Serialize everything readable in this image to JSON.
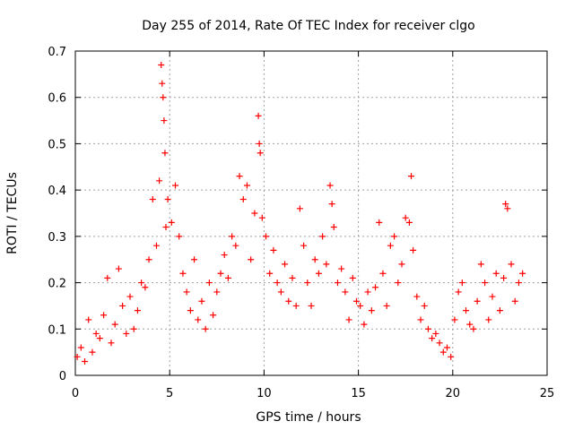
{
  "chart_data": {
    "type": "scatter",
    "title": "Day 255 of 2014, Rate Of TEC Index for receiver clgo",
    "xlabel": "GPS time / hours",
    "ylabel": "ROTI / TECUs",
    "xlim": [
      0,
      25
    ],
    "ylim": [
      0,
      0.7
    ],
    "xticks": [
      0,
      5,
      10,
      15,
      20,
      25
    ],
    "xtick_labels": [
      "0",
      "5",
      "10",
      "15",
      "20",
      "25"
    ],
    "yticks": [
      0,
      0.1,
      0.2,
      0.3,
      0.4,
      0.5,
      0.6,
      0.7
    ],
    "ytick_labels": [
      "0",
      "0.1",
      "0.2",
      "0.3",
      "0.4",
      "0.5",
      "0.6",
      "0.7"
    ],
    "grid": true,
    "marker": "+",
    "marker_color": "#ff0000",
    "series": [
      {
        "name": "ROTI",
        "x": [
          0.1,
          0.3,
          0.5,
          0.7,
          0.9,
          1.1,
          1.3,
          1.5,
          1.7,
          1.9,
          2.1,
          2.3,
          2.5,
          2.7,
          2.9,
          3.1,
          3.3,
          3.5,
          3.7,
          3.9,
          4.1,
          4.3,
          4.45,
          4.55,
          4.6,
          4.65,
          4.7,
          4.75,
          4.8,
          4.9,
          5.1,
          5.3,
          5.5,
          5.7,
          5.9,
          6.1,
          6.3,
          6.5,
          6.7,
          6.9,
          7.1,
          7.3,
          7.5,
          7.7,
          7.9,
          8.1,
          8.3,
          8.5,
          8.7,
          8.9,
          9.1,
          9.3,
          9.5,
          9.7,
          9.75,
          9.8,
          9.9,
          10.1,
          10.3,
          10.5,
          10.7,
          10.9,
          11.1,
          11.3,
          11.5,
          11.7,
          11.9,
          12.1,
          12.3,
          12.5,
          12.7,
          12.9,
          13.1,
          13.3,
          13.5,
          13.6,
          13.7,
          13.9,
          14.1,
          14.3,
          14.5,
          14.7,
          14.9,
          15.1,
          15.3,
          15.5,
          15.7,
          15.9,
          16.1,
          16.3,
          16.5,
          16.7,
          16.9,
          17.1,
          17.3,
          17.5,
          17.7,
          17.8,
          17.9,
          18.1,
          18.3,
          18.5,
          18.7,
          18.9,
          19.1,
          19.3,
          19.5,
          19.7,
          19.9,
          20.1,
          20.3,
          20.5,
          20.7,
          20.9,
          21.1,
          21.3,
          21.5,
          21.7,
          21.9,
          22.1,
          22.3,
          22.5,
          22.7,
          22.8,
          22.9,
          23.1,
          23.3,
          23.5,
          23.7
        ],
        "y": [
          0.04,
          0.06,
          0.03,
          0.12,
          0.05,
          0.09,
          0.08,
          0.13,
          0.21,
          0.07,
          0.11,
          0.23,
          0.15,
          0.09,
          0.17,
          0.1,
          0.14,
          0.2,
          0.19,
          0.25,
          0.38,
          0.28,
          0.42,
          0.67,
          0.63,
          0.6,
          0.55,
          0.48,
          0.32,
          0.38,
          0.33,
          0.41,
          0.3,
          0.22,
          0.18,
          0.14,
          0.25,
          0.12,
          0.16,
          0.1,
          0.2,
          0.13,
          0.18,
          0.22,
          0.26,
          0.21,
          0.3,
          0.28,
          0.43,
          0.38,
          0.41,
          0.25,
          0.35,
          0.56,
          0.5,
          0.48,
          0.34,
          0.3,
          0.22,
          0.27,
          0.2,
          0.18,
          0.24,
          0.16,
          0.21,
          0.15,
          0.36,
          0.28,
          0.2,
          0.15,
          0.25,
          0.22,
          0.3,
          0.24,
          0.41,
          0.37,
          0.32,
          0.2,
          0.23,
          0.18,
          0.12,
          0.21,
          0.16,
          0.15,
          0.11,
          0.18,
          0.14,
          0.19,
          0.33,
          0.22,
          0.15,
          0.28,
          0.3,
          0.2,
          0.24,
          0.34,
          0.33,
          0.43,
          0.27,
          0.17,
          0.12,
          0.15,
          0.1,
          0.08,
          0.09,
          0.07,
          0.05,
          0.06,
          0.04,
          0.12,
          0.18,
          0.2,
          0.14,
          0.11,
          0.1,
          0.16,
          0.24,
          0.2,
          0.12,
          0.17,
          0.22,
          0.14,
          0.21,
          0.37,
          0.36,
          0.24,
          0.16,
          0.2,
          0.22
        ]
      }
    ]
  }
}
